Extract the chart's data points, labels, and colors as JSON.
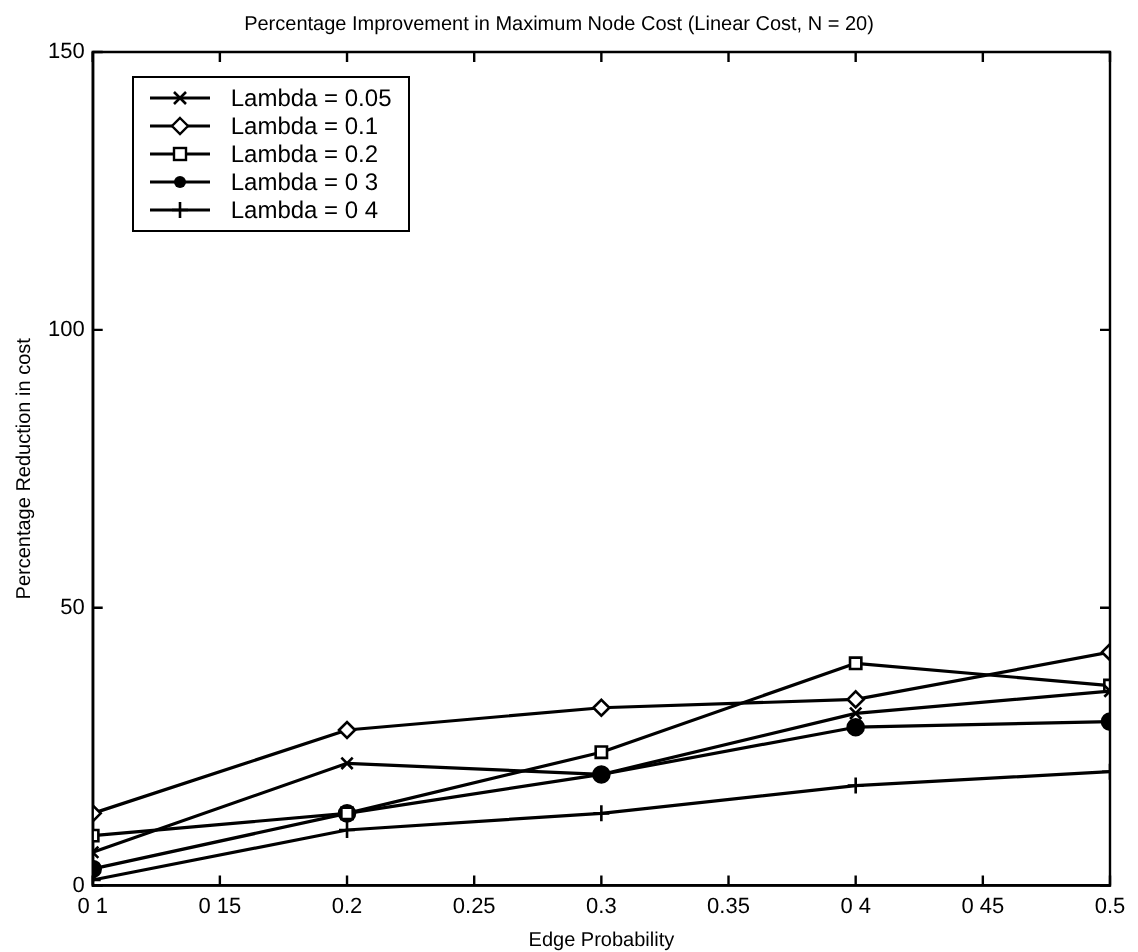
{
  "chart_data": {
    "type": "line",
    "title": "Percentage Improvement in Maximum Node Cost (Linear Cost, N = 20)",
    "xlabel": "Edge Probability",
    "ylabel": "Percentage Reduction in cost",
    "x": [
      0.1,
      0.2,
      0.3,
      0.4,
      0.5
    ],
    "xlim": [
      0.1,
      0.5
    ],
    "xticks": [
      {
        "value": 0.1,
        "label": "0 1"
      },
      {
        "value": 0.15,
        "label": "0 15"
      },
      0.2,
      0.25,
      0.3,
      0.35,
      {
        "value": 0.4,
        "label": "0 4"
      },
      {
        "value": 0.45,
        "label": "0 45"
      },
      0.5
    ],
    "ylim": [
      0,
      150
    ],
    "yticks": [
      0,
      50,
      100,
      150
    ],
    "grid": false,
    "legend": "top left",
    "line_style": "solid",
    "series": [
      {
        "name": "Lambda = 0.05",
        "color": "#000000",
        "marker": "cross",
        "values": [
          6,
          22,
          20,
          31,
          35
        ]
      },
      {
        "name": "Lambda = 0.1",
        "color": "#000000",
        "marker": "diamond",
        "values": [
          13,
          28,
          32,
          33.5,
          42
        ]
      },
      {
        "name": "Lambda = 0.2",
        "color": "#000000",
        "marker": "square",
        "values": [
          9,
          13,
          24,
          40,
          36
        ]
      },
      {
        "name": "Lambda = 0 3",
        "color": "#000000",
        "marker": "circle",
        "values": [
          3,
          13,
          20,
          28.5,
          29.5
        ]
      },
      {
        "name": "Lambda = 0 4",
        "color": "#000000",
        "marker": "cross",
        "values": [
          1,
          10,
          13,
          18,
          20.5
        ]
      }
    ]
  }
}
